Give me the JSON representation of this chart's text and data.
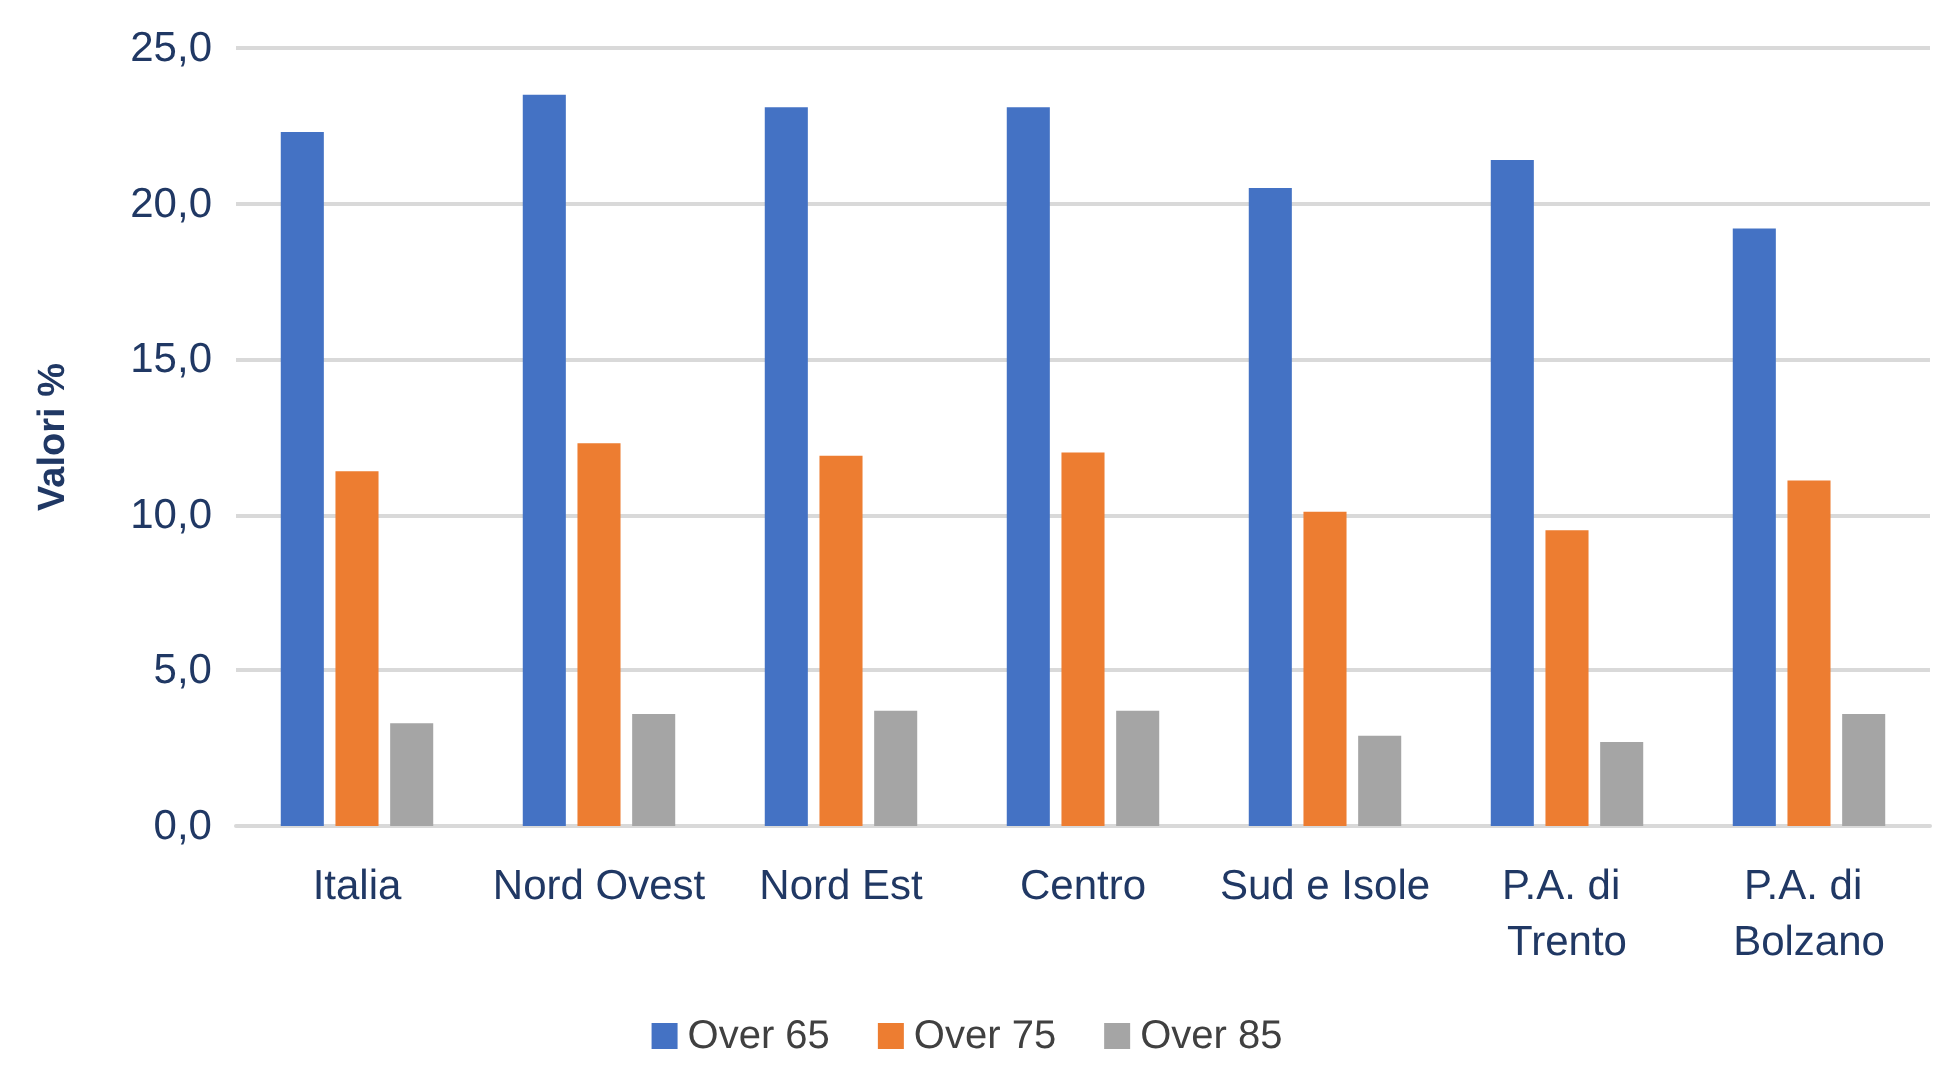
{
  "chart_data": {
    "type": "bar",
    "ylabel": "Valori %",
    "categories": [
      "Italia",
      "Nord Ovest",
      "Nord Est",
      "Centro",
      "Sud e Isole",
      "P.A. di Trento",
      "P.A. di Bolzano"
    ],
    "series": [
      {
        "name": "Over 65",
        "color": "#4472c4",
        "values": [
          22.3,
          23.5,
          23.1,
          23.1,
          20.5,
          21.4,
          19.2
        ]
      },
      {
        "name": "Over 75",
        "color": "#ed7d31",
        "values": [
          11.4,
          12.3,
          11.9,
          12.0,
          10.1,
          9.5,
          11.1
        ]
      },
      {
        "name": "Over 85",
        "color": "#a5a5a5",
        "values": [
          3.3,
          3.6,
          3.7,
          3.7,
          2.9,
          2.7,
          3.6
        ]
      }
    ],
    "ylim": [
      0,
      25
    ],
    "yticks": [
      {
        "value": 0,
        "label": "0,0"
      },
      {
        "value": 5,
        "label": "5,0"
      },
      {
        "value": 10,
        "label": "10,0"
      },
      {
        "value": 15,
        "label": "15,0"
      },
      {
        "value": 20,
        "label": "20,0"
      },
      {
        "value": 25,
        "label": "25,0"
      }
    ],
    "grid": "y",
    "legend": "bottom"
  }
}
